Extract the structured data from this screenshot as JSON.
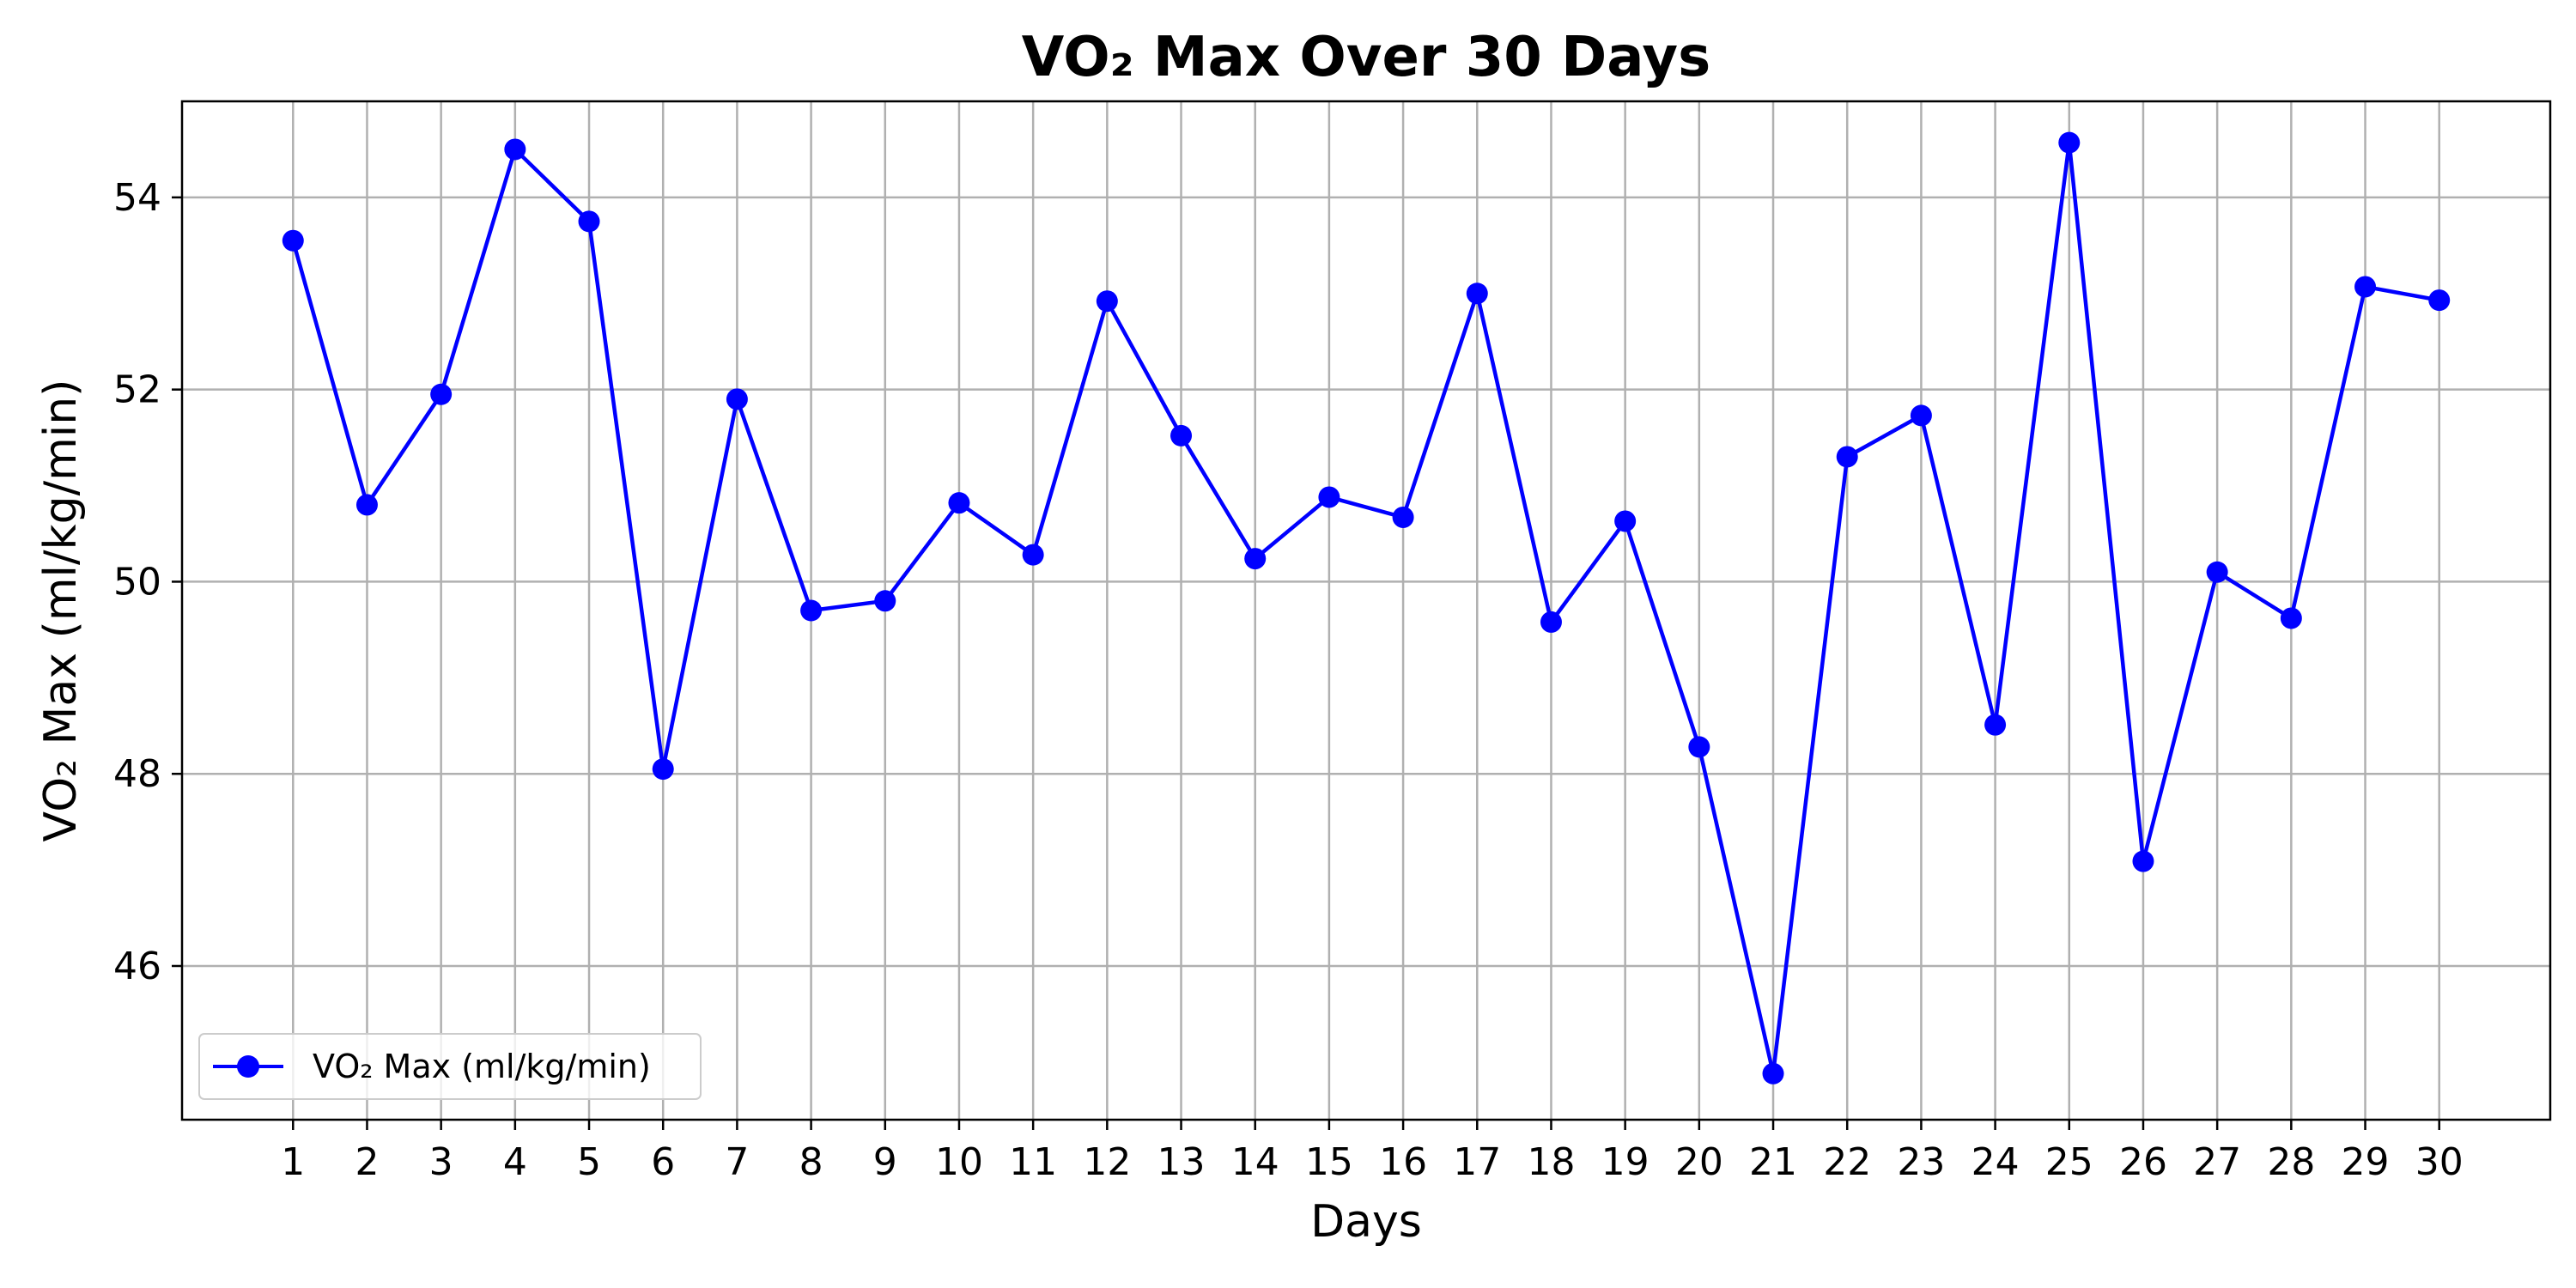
{
  "chart_data": {
    "type": "line",
    "title": "VO₂ Max Over 30 Days",
    "xlabel": "Days",
    "ylabel": "VO₂ Max (ml/kg/min)",
    "x": [
      1,
      2,
      3,
      4,
      5,
      6,
      7,
      8,
      9,
      10,
      11,
      12,
      13,
      14,
      15,
      16,
      17,
      18,
      19,
      20,
      21,
      22,
      23,
      24,
      25,
      26,
      27,
      28,
      29,
      30
    ],
    "x_tick_labels": [
      "1",
      "2",
      "3",
      "4",
      "5",
      "6",
      "7",
      "8",
      "9",
      "10",
      "11",
      "12",
      "13",
      "14",
      "15",
      "16",
      "17",
      "18",
      "19",
      "20",
      "21",
      "22",
      "23",
      "24",
      "25",
      "26",
      "27",
      "28",
      "29",
      "30"
    ],
    "y_ticks": [
      46,
      48,
      50,
      52,
      54
    ],
    "y_tick_labels": [
      "46",
      "48",
      "50",
      "52",
      "54"
    ],
    "xlim": [
      -0.5,
      31.5
    ],
    "ylim": [
      44.4,
      55.0
    ],
    "grid": true,
    "legend_position": "lower-left",
    "series": [
      {
        "name": "VO₂ Max (ml/kg/min)",
        "color": "#0000ff",
        "marker": "circle",
        "values": [
          53.55,
          50.8,
          51.95,
          54.5,
          53.75,
          48.05,
          51.9,
          49.7,
          49.8,
          50.82,
          50.28,
          52.92,
          51.52,
          50.24,
          50.88,
          50.67,
          53.0,
          49.58,
          50.63,
          48.28,
          44.88,
          51.3,
          51.73,
          48.51,
          54.57,
          47.09,
          50.1,
          49.62,
          53.07,
          52.93
        ]
      }
    ]
  }
}
